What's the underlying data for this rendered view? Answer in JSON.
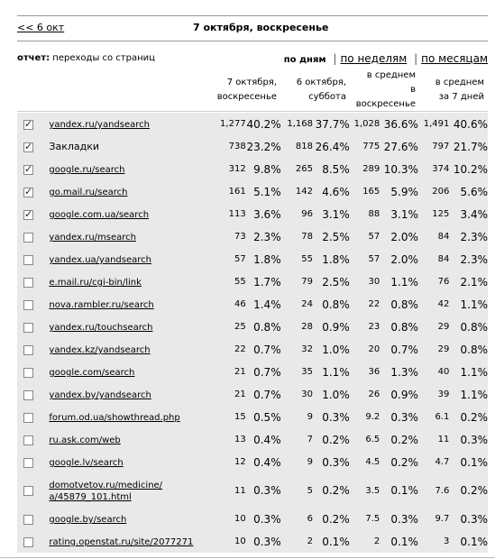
{
  "nav": {
    "prev_link": "<< 6 окт",
    "date_title": "7 октября, воскресенье"
  },
  "report": {
    "label": "отчет:",
    "value": "переходы со страниц"
  },
  "period": {
    "by_day": "по дням",
    "by_week": "по неделям",
    "by_month": "по месяцам"
  },
  "columns": {
    "c1": [
      "7 октября,",
      "воскресенье"
    ],
    "c2": [
      "6 октября,",
      "суббота"
    ],
    "c3": [
      "в среднем",
      "в",
      "воскресенье"
    ],
    "c4": [
      "в среднем",
      "за 7 дней"
    ]
  },
  "rows": [
    {
      "name": "yandex.ru/yandsearch",
      "link": true,
      "checked": true,
      "v1": "1,277",
      "p1": "40.2%",
      "v2": "1,168",
      "p2": "37.7%",
      "v3": "1,028",
      "p3": "36.6%",
      "v4": "1,491",
      "p4": "40.6%"
    },
    {
      "name": "Закладки",
      "link": false,
      "checked": true,
      "v1": "738",
      "p1": "23.2%",
      "v2": "818",
      "p2": "26.4%",
      "v3": "775",
      "p3": "27.6%",
      "v4": "797",
      "p4": "21.7%"
    },
    {
      "name": "google.ru/search",
      "link": true,
      "checked": true,
      "v1": "312",
      "p1": "9.8%",
      "v2": "265",
      "p2": "8.5%",
      "v3": "289",
      "p3": "10.3%",
      "v4": "374",
      "p4": "10.2%"
    },
    {
      "name": "go.mail.ru/search",
      "link": true,
      "checked": true,
      "v1": "161",
      "p1": "5.1%",
      "v2": "142",
      "p2": "4.6%",
      "v3": "165",
      "p3": "5.9%",
      "v4": "206",
      "p4": "5.6%"
    },
    {
      "name": "google.com.ua/search",
      "link": true,
      "checked": true,
      "v1": "113",
      "p1": "3.6%",
      "v2": "96",
      "p2": "3.1%",
      "v3": "88",
      "p3": "3.1%",
      "v4": "125",
      "p4": "3.4%"
    },
    {
      "name": "yandex.ru/msearch",
      "link": true,
      "checked": false,
      "v1": "73",
      "p1": "2.3%",
      "v2": "78",
      "p2": "2.5%",
      "v3": "57",
      "p3": "2.0%",
      "v4": "84",
      "p4": "2.3%"
    },
    {
      "name": "yandex.ua/yandsearch",
      "link": true,
      "checked": false,
      "v1": "57",
      "p1": "1.8%",
      "v2": "55",
      "p2": "1.8%",
      "v3": "57",
      "p3": "2.0%",
      "v4": "84",
      "p4": "2.3%"
    },
    {
      "name": "e.mail.ru/cgi-bin/link",
      "link": true,
      "checked": false,
      "v1": "55",
      "p1": "1.7%",
      "v2": "79",
      "p2": "2.5%",
      "v3": "30",
      "p3": "1.1%",
      "v4": "76",
      "p4": "2.1%"
    },
    {
      "name": "nova.rambler.ru/search",
      "link": true,
      "checked": false,
      "v1": "46",
      "p1": "1.4%",
      "v2": "24",
      "p2": "0.8%",
      "v3": "22",
      "p3": "0.8%",
      "v4": "42",
      "p4": "1.1%"
    },
    {
      "name": "yandex.ru/touchsearch",
      "link": true,
      "checked": false,
      "v1": "25",
      "p1": "0.8%",
      "v2": "28",
      "p2": "0.9%",
      "v3": "23",
      "p3": "0.8%",
      "v4": "29",
      "p4": "0.8%"
    },
    {
      "name": "yandex.kz/yandsearch",
      "link": true,
      "checked": false,
      "v1": "22",
      "p1": "0.7%",
      "v2": "32",
      "p2": "1.0%",
      "v3": "20",
      "p3": "0.7%",
      "v4": "29",
      "p4": "0.8%"
    },
    {
      "name": "google.com/search",
      "link": true,
      "checked": false,
      "v1": "21",
      "p1": "0.7%",
      "v2": "35",
      "p2": "1.1%",
      "v3": "36",
      "p3": "1.3%",
      "v4": "40",
      "p4": "1.1%"
    },
    {
      "name": "yandex.by/yandsearch",
      "link": true,
      "checked": false,
      "v1": "21",
      "p1": "0.7%",
      "v2": "30",
      "p2": "1.0%",
      "v3": "26",
      "p3": "0.9%",
      "v4": "39",
      "p4": "1.1%"
    },
    {
      "name": "forum.od.ua/showthread.php",
      "link": true,
      "checked": false,
      "v1": "15",
      "p1": "0.5%",
      "v2": "9",
      "p2": "0.3%",
      "v3": "9.2",
      "p3": "0.3%",
      "v4": "6.1",
      "p4": "0.2%"
    },
    {
      "name": "ru.ask.com/web",
      "link": true,
      "checked": false,
      "v1": "13",
      "p1": "0.4%",
      "v2": "7",
      "p2": "0.2%",
      "v3": "6.5",
      "p3": "0.2%",
      "v4": "11",
      "p4": "0.3%"
    },
    {
      "name": "google.lv/search",
      "link": true,
      "checked": false,
      "v1": "12",
      "p1": "0.4%",
      "v2": "9",
      "p2": "0.3%",
      "v3": "4.5",
      "p3": "0.2%",
      "v4": "4.7",
      "p4": "0.1%"
    },
    {
      "name": "domotvetov.ru/medicine/a/45879_101.html",
      "name_line1": "domotvetov.ru/medicine/",
      "name_line2": "a/45879_101.html",
      "link": true,
      "checked": false,
      "tall": true,
      "v1": "11",
      "p1": "0.3%",
      "v2": "5",
      "p2": "0.2%",
      "v3": "3.5",
      "p3": "0.1%",
      "v4": "7.6",
      "p4": "0.2%"
    },
    {
      "name": "google.by/search",
      "link": true,
      "checked": false,
      "v1": "10",
      "p1": "0.3%",
      "v2": "6",
      "p2": "0.2%",
      "v3": "7.5",
      "p3": "0.3%",
      "v4": "9.7",
      "p4": "0.3%"
    },
    {
      "name": "rating.openstat.ru/site/2077271",
      "link": true,
      "checked": false,
      "v1": "10",
      "p1": "0.3%",
      "v2": "2",
      "p2": "0.1%",
      "v3": "2",
      "p3": "0.1%",
      "v4": "3",
      "p4": "0.1%"
    }
  ]
}
